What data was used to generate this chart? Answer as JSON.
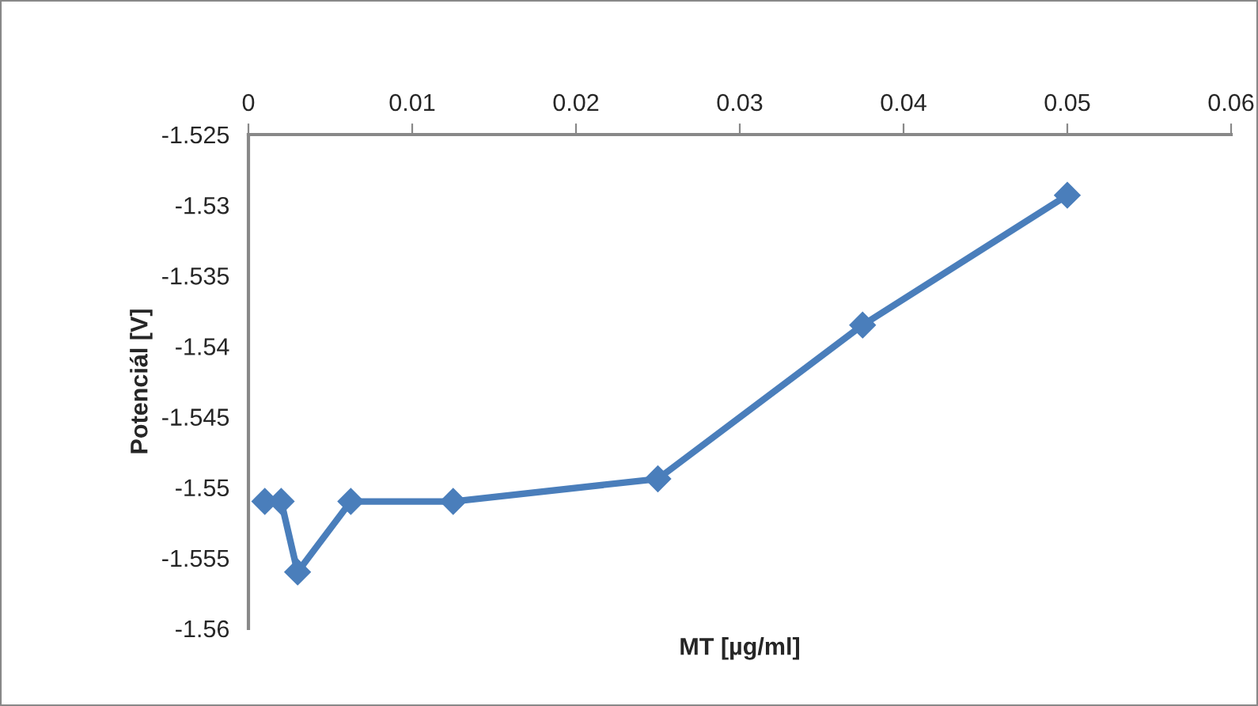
{
  "chart_data": {
    "type": "line",
    "xlabel": "MT [µg/ml]",
    "ylabel": "Potenciál [V]",
    "x": [
      0.001,
      0.002,
      0.003,
      0.00625,
      0.0125,
      0.025,
      0.0375,
      0.05
    ],
    "series": [
      {
        "color": "#4a7ebb",
        "values": [
          -1.551,
          -1.551,
          -1.556,
          -1.551,
          -1.551,
          -1.5494,
          -1.5385,
          -1.5293
        ]
      }
    ],
    "xlim": [
      0,
      0.06
    ],
    "xticks": [
      0,
      0.01,
      0.02,
      0.03,
      0.04,
      0.05,
      0.06
    ],
    "ylim": [
      -1.56,
      -1.525
    ],
    "yticks": [
      -1.56,
      -1.555,
      -1.55,
      -1.545,
      -1.54,
      -1.535,
      -1.53,
      -1.525
    ],
    "marker": "diamond",
    "line_style": "solid",
    "grid": false,
    "legend": false
  }
}
